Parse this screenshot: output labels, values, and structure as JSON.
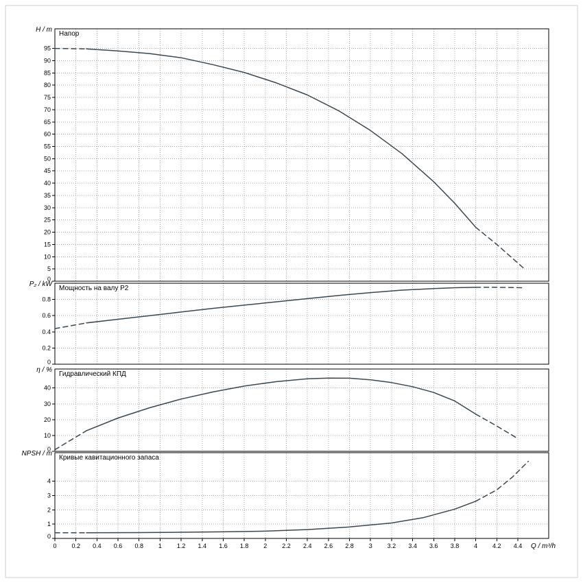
{
  "figure": {
    "background": "#ffffff",
    "frame_color": "#cfcfcf",
    "curve_color": "#3a4750",
    "grid_color": "#a8a8a8"
  },
  "x_axis": {
    "label": "Q / m³/h",
    "min": 0,
    "tick_step": 0.2,
    "tick_max": 4.4
  },
  "chart_data": [
    {
      "id": "head",
      "type": "line",
      "title": "Напор",
      "y_unit": "H / m",
      "ylim": [
        0,
        103
      ],
      "ytick_step": 5,
      "ytick_max": 95,
      "series": [
        {
          "name": "head-curve",
          "segments": [
            {
              "style": "dashed",
              "points": [
                [
                  0,
                  95
                ],
                [
                  0.3,
                  94.8
                ]
              ]
            },
            {
              "style": "solid",
              "points": [
                [
                  0.3,
                  94.8
                ],
                [
                  0.6,
                  94.0
                ],
                [
                  0.9,
                  92.9
                ],
                [
                  1.2,
                  91.2
                ],
                [
                  1.5,
                  88.4
                ],
                [
                  1.8,
                  85.2
                ],
                [
                  2.1,
                  81.0
                ],
                [
                  2.4,
                  76.0
                ],
                [
                  2.7,
                  69.5
                ],
                [
                  3.0,
                  61.5
                ],
                [
                  3.3,
                  52.0
                ],
                [
                  3.6,
                  40.6
                ],
                [
                  3.8,
                  31.8
                ],
                [
                  4.0,
                  22.0
                ]
              ]
            },
            {
              "style": "dashed",
              "points": [
                [
                  4.0,
                  22.0
                ],
                [
                  4.2,
                  15.0
                ],
                [
                  4.45,
                  5.5
                ]
              ]
            }
          ]
        }
      ]
    },
    {
      "id": "power",
      "type": "line",
      "title": "Мощность на валу P2",
      "y_unit": "P₂ / kW",
      "ylim": [
        0,
        1.0
      ],
      "ytick_step": 0.2,
      "ytick_max": 0.8,
      "series": [
        {
          "name": "shaft-power-curve",
          "segments": [
            {
              "style": "dashed",
              "points": [
                [
                  0,
                  0.44
                ],
                [
                  0.3,
                  0.51
                ]
              ]
            },
            {
              "style": "solid",
              "points": [
                [
                  0.3,
                  0.51
                ],
                [
                  0.6,
                  0.555
                ],
                [
                  0.9,
                  0.6
                ],
                [
                  1.2,
                  0.645
                ],
                [
                  1.5,
                  0.69
                ],
                [
                  1.8,
                  0.73
                ],
                [
                  2.1,
                  0.77
                ],
                [
                  2.4,
                  0.81
                ],
                [
                  2.7,
                  0.85
                ],
                [
                  3.0,
                  0.885
                ],
                [
                  3.3,
                  0.915
                ],
                [
                  3.6,
                  0.935
                ],
                [
                  3.8,
                  0.945
                ],
                [
                  4.0,
                  0.95
                ]
              ]
            },
            {
              "style": "dashed",
              "points": [
                [
                  4.0,
                  0.95
                ],
                [
                  4.2,
                  0.95
                ],
                [
                  4.45,
                  0.945
                ]
              ]
            }
          ]
        }
      ]
    },
    {
      "id": "efficiency",
      "type": "line",
      "title": "Гидравлический КПД",
      "y_unit": "η / %",
      "ylim": [
        0,
        52
      ],
      "ytick_step": 10,
      "ytick_max": 40,
      "series": [
        {
          "name": "efficiency-curve",
          "segments": [
            {
              "style": "dashed",
              "points": [
                [
                  0,
                  1.0
                ],
                [
                  0.15,
                  7.0
                ],
                [
                  0.3,
                  13.0
                ]
              ]
            },
            {
              "style": "solid",
              "points": [
                [
                  0.3,
                  13.0
                ],
                [
                  0.6,
                  21.0
                ],
                [
                  0.9,
                  27.5
                ],
                [
                  1.2,
                  33.0
                ],
                [
                  1.5,
                  37.5
                ],
                [
                  1.8,
                  41.2
                ],
                [
                  2.1,
                  44.0
                ],
                [
                  2.4,
                  45.8
                ],
                [
                  2.6,
                  46.3
                ],
                [
                  2.8,
                  46.2
                ],
                [
                  3.0,
                  45.2
                ],
                [
                  3.2,
                  43.4
                ],
                [
                  3.4,
                  40.8
                ],
                [
                  3.6,
                  37.2
                ],
                [
                  3.8,
                  31.8
                ],
                [
                  4.0,
                  23.5
                ]
              ]
            },
            {
              "style": "dashed",
              "points": [
                [
                  4.0,
                  23.5
                ],
                [
                  4.2,
                  16.0
                ],
                [
                  4.4,
                  8.0
                ]
              ]
            }
          ]
        }
      ]
    },
    {
      "id": "npsh",
      "type": "line",
      "title": "Кривые кавитационного запаса",
      "y_unit": "NPSH / m",
      "ylim": [
        0,
        6
      ],
      "ytick_step": 1,
      "ytick_max": 4,
      "series": [
        {
          "name": "npsh-curve",
          "segments": [
            {
              "style": "dashed",
              "points": [
                [
                  0,
                  0.4
                ],
                [
                  0.3,
                  0.4
                ]
              ]
            },
            {
              "style": "solid",
              "points": [
                [
                  0.3,
                  0.4
                ],
                [
                  0.8,
                  0.41
                ],
                [
                  1.2,
                  0.43
                ],
                [
                  1.6,
                  0.46
                ],
                [
                  2.0,
                  0.51
                ],
                [
                  2.4,
                  0.62
                ],
                [
                  2.8,
                  0.8
                ],
                [
                  3.2,
                  1.08
                ],
                [
                  3.5,
                  1.45
                ],
                [
                  3.8,
                  2.05
                ],
                [
                  4.0,
                  2.6
                ]
              ]
            },
            {
              "style": "dashed",
              "points": [
                [
                  4.0,
                  2.6
                ],
                [
                  4.2,
                  3.4
                ],
                [
                  4.35,
                  4.3
                ],
                [
                  4.5,
                  5.4
                ]
              ]
            }
          ]
        }
      ]
    }
  ]
}
